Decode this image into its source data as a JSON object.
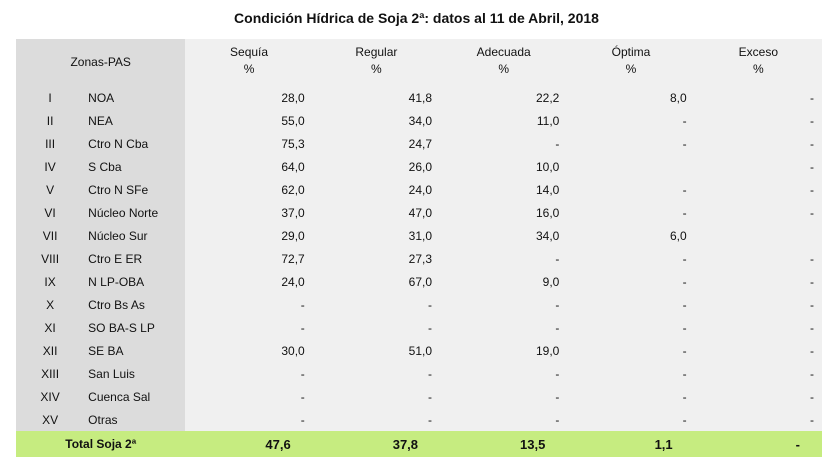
{
  "title": "Condición Hídrica de Soja 2ª: datos al 11 de Abril, 2018",
  "headers": {
    "zones": "Zonas-PAS",
    "columns": [
      {
        "name": "Sequía",
        "unit": "%"
      },
      {
        "name": "Regular",
        "unit": "%"
      },
      {
        "name": "Adecuada",
        "unit": "%"
      },
      {
        "name": "Óptima",
        "unit": "%"
      },
      {
        "name": "Exceso",
        "unit": "%"
      }
    ]
  },
  "rows": [
    {
      "num": "I",
      "zone": "NOA",
      "values": [
        "28,0",
        "41,8",
        "22,2",
        "8,0",
        "-"
      ]
    },
    {
      "num": "II",
      "zone": "NEA",
      "values": [
        "55,0",
        "34,0",
        "11,0",
        "-",
        "-"
      ]
    },
    {
      "num": "III",
      "zone": "Ctro N Cba",
      "values": [
        "75,3",
        "24,7",
        "-",
        "-",
        "-"
      ]
    },
    {
      "num": "IV",
      "zone": "S Cba",
      "values": [
        "64,0",
        "26,0",
        "10,0",
        "",
        "-"
      ]
    },
    {
      "num": "V",
      "zone": "Ctro N SFe",
      "values": [
        "62,0",
        "24,0",
        "14,0",
        "-",
        "-"
      ]
    },
    {
      "num": "VI",
      "zone": "Núcleo Norte",
      "values": [
        "37,0",
        "47,0",
        "16,0",
        "-",
        "-"
      ]
    },
    {
      "num": "VII",
      "zone": "Núcleo Sur",
      "values": [
        "29,0",
        "31,0",
        "34,0",
        "6,0",
        ""
      ]
    },
    {
      "num": "VIII",
      "zone": "Ctro E ER",
      "values": [
        "72,7",
        "27,3",
        "-",
        "-",
        "-"
      ]
    },
    {
      "num": "IX",
      "zone": "N LP-OBA",
      "values": [
        "24,0",
        "67,0",
        "9,0",
        "-",
        "-"
      ]
    },
    {
      "num": "X",
      "zone": "Ctro Bs As",
      "values": [
        "-",
        "-",
        "-",
        "-",
        "-"
      ]
    },
    {
      "num": "XI",
      "zone": "SO BA-S LP",
      "values": [
        "-",
        "-",
        "-",
        "-",
        "-"
      ]
    },
    {
      "num": "XII",
      "zone": "SE BA",
      "values": [
        "30,0",
        "51,0",
        "19,0",
        "-",
        "-"
      ]
    },
    {
      "num": "XIII",
      "zone": "San Luis",
      "values": [
        "-",
        "-",
        "-",
        "-",
        "-"
      ]
    },
    {
      "num": "XIV",
      "zone": "Cuenca Sal",
      "values": [
        "-",
        "-",
        "-",
        "-",
        "-"
      ]
    },
    {
      "num": "XV",
      "zone": "Otras",
      "values": [
        "-",
        "-",
        "-",
        "-",
        "-"
      ]
    }
  ],
  "total": {
    "label": "Total Soja 2ª",
    "values": [
      "47,6",
      "37,8",
      "13,5",
      "1,1",
      "-"
    ]
  },
  "colors": {
    "zone_bg": "#dcdcdc",
    "value_bg": "#f0f0f0",
    "total_bg": "#c6ec80"
  }
}
